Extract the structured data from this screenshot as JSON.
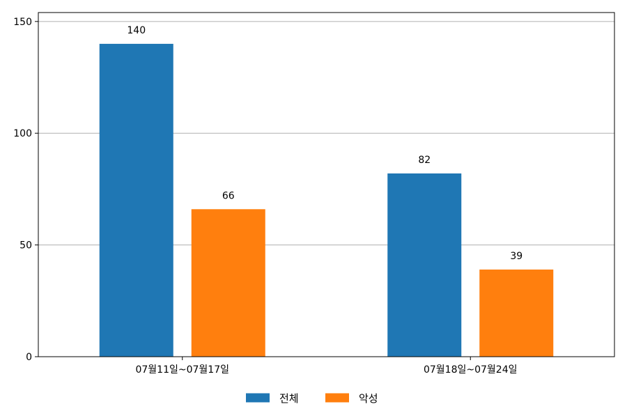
{
  "chart_data": {
    "type": "bar",
    "categories": [
      "07월11일~07월17일",
      "07월18일~07월24일"
    ],
    "series": [
      {
        "name": "전체",
        "values": [
          140,
          82
        ],
        "color": "#1f77b4"
      },
      {
        "name": "악성",
        "values": [
          66,
          39
        ],
        "color": "#ff7f0e"
      }
    ],
    "y_ticks": [
      0,
      50,
      100,
      150
    ],
    "ylim": [
      0,
      154
    ],
    "grid": "y",
    "legend": "bottom-center",
    "data_labels": true
  }
}
